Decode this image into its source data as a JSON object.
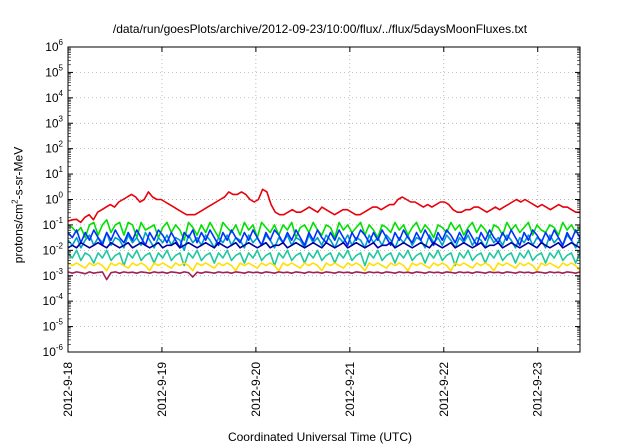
{
  "chart_data": {
    "type": "line",
    "title": "/data/run/goesPlots/archive/2012-09-23/10:00/flux/../flux/5daysMoonFluxes.txt",
    "xlabel": "Coordinated Universal Time (UTC)",
    "ylabel": {
      "prefix": "protons/cm",
      "sup": "2",
      "suffix": "-s-sr-MeV"
    },
    "yscale": "log",
    "ylim_exponents": [
      -6,
      6
    ],
    "ytick_labels": [
      {
        "base": "10",
        "exp": "6"
      },
      {
        "base": "10",
        "exp": "5"
      },
      {
        "base": "10",
        "exp": "4"
      },
      {
        "base": "10",
        "exp": "3"
      },
      {
        "base": "10",
        "exp": "2"
      },
      {
        "base": "10",
        "exp": "1"
      },
      {
        "base": "10",
        "exp": "0"
      },
      {
        "base": "10",
        "exp": "-1"
      },
      {
        "base": "10",
        "exp": "-2"
      },
      {
        "base": "10",
        "exp": "-3"
      },
      {
        "base": "10",
        "exp": "-4"
      },
      {
        "base": "10",
        "exp": "-5"
      },
      {
        "base": "10",
        "exp": "-6"
      }
    ],
    "xlim_days": [
      0,
      5.45
    ],
    "xtick_labels": [
      "2012-9-18",
      "2012-9-19",
      "2012-9-20",
      "2012-9-21",
      "2012-9-22",
      "2012-9-23"
    ],
    "grid": true,
    "series": [
      {
        "color": "#e8000b",
        "values": [
          -0.85,
          -0.8,
          -0.78,
          -0.9,
          -0.7,
          -0.6,
          -0.8,
          -0.5,
          -0.4,
          -0.3,
          -0.2,
          -0.3,
          -0.1,
          0.0,
          0.1,
          0.2,
          0.1,
          -0.1,
          0.0,
          0.3,
          0.1,
          0.0,
          0.0,
          -0.1,
          -0.2,
          -0.3,
          -0.4,
          -0.5,
          -0.6,
          -0.6,
          -0.6,
          -0.5,
          -0.4,
          -0.3,
          -0.2,
          -0.1,
          0.0,
          0.1,
          0.3,
          0.2,
          0.2,
          0.3,
          0.2,
          0.0,
          -0.1,
          0.0,
          0.4,
          0.3,
          -0.2,
          -0.5,
          -0.6,
          -0.6,
          -0.5,
          -0.4,
          -0.5,
          -0.5,
          -0.4,
          -0.3,
          -0.4,
          -0.5,
          -0.3,
          -0.4,
          -0.5,
          -0.6,
          -0.5,
          -0.4,
          -0.4,
          -0.5,
          -0.6,
          -0.6,
          -0.5,
          -0.4,
          -0.3,
          -0.3,
          -0.4,
          -0.3,
          -0.2,
          -0.2,
          0.0,
          0.1,
          0.0,
          -0.1,
          -0.1,
          -0.2,
          -0.3,
          -0.2,
          -0.3,
          -0.2,
          -0.1,
          -0.1,
          -0.2,
          -0.4,
          -0.5,
          -0.5,
          -0.4,
          -0.4,
          -0.3,
          -0.3,
          -0.4,
          -0.5,
          -0.4,
          -0.3,
          -0.4,
          -0.3,
          -0.2,
          -0.1,
          0.0,
          -0.1,
          0.0,
          -0.1,
          -0.2,
          -0.3,
          -0.2,
          -0.3,
          -0.4,
          -0.3,
          -0.2,
          -0.3,
          -0.3,
          -0.4,
          -0.5,
          -0.5
        ]
      },
      {
        "color": "#00e000",
        "values": [
          -1.0,
          -1.1,
          -1.3,
          -1.1,
          -1.5,
          -1.0,
          -0.9,
          -1.4,
          -1.0,
          -0.8,
          -1.3,
          -1.0,
          -0.9,
          -1.4,
          -0.9,
          -1.0,
          -1.5,
          -0.9,
          -1.2,
          -1.1,
          -1.0,
          -1.5,
          -1.1,
          -0.9,
          -1.3,
          -1.0,
          -1.2,
          -1.6,
          -0.9,
          -1.1,
          -1.4,
          -1.0,
          -1.3,
          -0.9,
          -1.2,
          -1.5,
          -0.9,
          -1.1,
          -1.3,
          -1.0,
          -1.4,
          -0.9,
          -1.2,
          -1.0,
          -1.5,
          -0.9,
          -1.1,
          -1.3,
          -1.0,
          -1.4,
          -1.0,
          -1.2,
          -0.9,
          -1.5,
          -1.1,
          -1.0,
          -1.3,
          -0.9,
          -1.2,
          -1.4,
          -1.0,
          -1.1,
          -1.5,
          -0.9,
          -1.2,
          -1.0,
          -1.3,
          -1.1,
          -0.9,
          -1.4,
          -1.0,
          -1.2,
          -1.5,
          -1.0,
          -1.1,
          -1.3,
          -0.9,
          -1.2,
          -1.0,
          -1.4,
          -1.1,
          -0.9,
          -1.3,
          -1.0,
          -1.2,
          -1.5,
          -1.0,
          -1.1,
          -1.3,
          -0.9,
          -1.2,
          -1.0,
          -1.4,
          -1.1,
          -0.9,
          -1.3,
          -1.0,
          -1.2,
          -1.5,
          -1.0,
          -1.1,
          -1.4,
          -0.9,
          -1.2,
          -1.0,
          -1.3,
          -1.1,
          -0.9,
          -1.4,
          -1.0,
          -1.2,
          -1.3,
          -1.0,
          -1.1,
          -1.4,
          -0.9,
          -1.2,
          -1.0,
          -1.3,
          -1.1
        ]
      },
      {
        "color": "#00a0c8",
        "values": [
          -1.6,
          -1.8,
          -1.5,
          -1.9,
          -1.6,
          -1.4,
          -1.8,
          -1.5,
          -1.7,
          -1.3,
          -1.8,
          -1.5,
          -1.6,
          -1.9,
          -1.4,
          -1.7,
          -1.5,
          -1.8,
          -1.3,
          -1.6,
          -1.9,
          -1.5,
          -1.7,
          -1.4,
          -1.8,
          -1.5,
          -1.6,
          -2.0,
          -1.4,
          -1.7,
          -1.5,
          -1.8,
          -1.4,
          -1.6,
          -1.9,
          -1.5,
          -1.7,
          -1.4,
          -1.8,
          -1.5,
          -1.6,
          -1.9,
          -1.4,
          -1.7,
          -1.5,
          -1.8,
          -1.4,
          -1.6,
          -1.9,
          -1.5,
          -1.7,
          -1.4,
          -1.8,
          -1.5,
          -1.6,
          -1.9,
          -1.4,
          -1.7,
          -1.5,
          -1.8,
          -1.4,
          -1.6,
          -1.9,
          -1.5,
          -1.7,
          -1.4,
          -1.8,
          -1.5,
          -1.6,
          -1.9,
          -1.4,
          -1.7,
          -1.5,
          -1.8,
          -1.4,
          -1.6,
          -1.9,
          -1.5,
          -1.7,
          -1.4,
          -1.8,
          -1.5,
          -1.6,
          -1.9,
          -1.4,
          -1.7,
          -1.5,
          -1.8,
          -1.4,
          -1.6,
          -1.9,
          -1.5,
          -1.7,
          -1.4,
          -1.8,
          -1.5,
          -1.6,
          -1.9,
          -1.4,
          -1.7,
          -1.5,
          -1.8,
          -1.4,
          -1.6,
          -1.9,
          -1.5,
          -1.7,
          -1.4,
          -1.8,
          -1.5,
          -1.6,
          -1.9,
          -1.4,
          -1.7,
          -1.5,
          -1.8,
          -1.4,
          -1.6,
          -1.9,
          -1.5
        ]
      },
      {
        "color": "#0030ff",
        "values": [
          -1.3,
          -1.5,
          -1.2,
          -1.7,
          -1.3,
          -1.6,
          -1.2,
          -1.5,
          -1.8,
          -1.3,
          -1.6,
          -1.2,
          -1.5,
          -1.7,
          -1.3,
          -1.6,
          -1.2,
          -1.5,
          -1.8,
          -1.3,
          -1.6,
          -1.2,
          -1.4,
          -1.7,
          -1.3,
          -1.6,
          -1.9,
          -1.3,
          -1.5,
          -1.2,
          -1.7,
          -1.3,
          -1.6,
          -1.2,
          -1.5,
          -1.8,
          -1.3,
          -1.6,
          -1.2,
          -1.5,
          -1.7,
          -1.3,
          -1.6,
          -1.2,
          -1.5,
          -1.8,
          -1.3,
          -1.6,
          -1.2,
          -1.4,
          -1.7,
          -1.3,
          -1.6,
          -1.2,
          -1.5,
          -1.8,
          -1.3,
          -1.6,
          -1.2,
          -1.5,
          -1.7,
          -1.3,
          -1.6,
          -1.2,
          -1.5,
          -1.8,
          -1.3,
          -1.6,
          -1.2,
          -1.4,
          -1.7,
          -1.3,
          -1.6,
          -1.2,
          -1.5,
          -1.8,
          -1.3,
          -1.6,
          -1.2,
          -1.5,
          -1.7,
          -1.3,
          -1.6,
          -1.2,
          -1.5,
          -1.8,
          -1.3,
          -1.6,
          -1.2,
          -1.4,
          -1.7,
          -1.3,
          -1.6,
          -1.2,
          -1.5,
          -1.8,
          -1.3,
          -1.6,
          -1.2,
          -1.5,
          -1.7,
          -1.3,
          -1.6,
          -1.2,
          -1.5,
          -1.8,
          -1.3,
          -1.6,
          -1.2,
          -1.4,
          -1.7,
          -1.3,
          -1.6,
          -1.2,
          -1.5,
          -1.8,
          -1.3,
          -1.6,
          -1.2,
          -1.5
        ]
      },
      {
        "color": "#0000a0",
        "values": [
          -1.9,
          -1.8,
          -1.9,
          -1.7,
          -1.8,
          -1.9,
          -1.8,
          -1.7,
          -1.8,
          -1.9,
          -1.7,
          -1.8,
          -1.9,
          -1.8,
          -1.7,
          -1.9,
          -1.8,
          -1.7,
          -1.8,
          -1.9,
          -1.8,
          -1.7,
          -1.9,
          -1.8,
          -1.8,
          -1.7,
          -1.9,
          -1.8,
          -1.7,
          -1.8,
          -1.9,
          -1.8,
          -1.7,
          -1.8,
          -1.9,
          -1.7,
          -1.8,
          -1.9,
          -1.8,
          -1.7,
          -1.9,
          -1.8,
          -1.7,
          -1.8,
          -1.9,
          -1.8,
          -1.7,
          -1.9,
          -1.8,
          -1.8,
          -1.7,
          -1.9,
          -1.8,
          -1.7,
          -1.8,
          -1.9,
          -1.8,
          -1.7,
          -1.8,
          -1.9,
          -1.7,
          -1.8,
          -1.9,
          -1.8,
          -1.7,
          -1.9,
          -1.8,
          -1.7,
          -1.8,
          -1.9,
          -1.8,
          -1.7,
          -1.9,
          -1.8,
          -1.8,
          -1.7,
          -1.9,
          -1.8,
          -1.7,
          -1.8,
          -1.9,
          -1.8,
          -1.7,
          -1.8,
          -1.9,
          -1.7,
          -1.8,
          -1.9,
          -1.8,
          -1.7,
          -1.9,
          -1.8,
          -1.7,
          -1.8,
          -1.9,
          -1.8,
          -1.7,
          -1.9,
          -1.8,
          -1.8,
          -1.7,
          -1.9,
          -1.8,
          -1.7,
          -1.8,
          -1.9,
          -1.8,
          -1.7,
          -1.8,
          -1.9,
          -1.7,
          -1.8,
          -1.9,
          -1.8,
          -1.7,
          -1.9,
          -1.8,
          -1.7,
          -1.8,
          -1.9
        ]
      },
      {
        "color": "#20c8a0",
        "values": [
          -2.1,
          -2.3,
          -2.0,
          -2.4,
          -2.1,
          -2.2,
          -2.5,
          -2.1,
          -2.3,
          -2.0,
          -2.4,
          -2.2,
          -2.1,
          -2.6,
          -2.1,
          -2.3,
          -2.0,
          -2.4,
          -2.2,
          -2.1,
          -2.5,
          -2.1,
          -2.3,
          -2.0,
          -2.4,
          -2.2,
          -2.1,
          -2.6,
          -2.1,
          -2.3,
          -2.0,
          -2.4,
          -2.2,
          -2.1,
          -2.5,
          -2.1,
          -2.3,
          -2.0,
          -2.4,
          -2.2,
          -2.1,
          -2.5,
          -2.1,
          -2.3,
          -2.0,
          -2.4,
          -2.2,
          -2.1,
          -2.6,
          -2.1,
          -2.3,
          -2.0,
          -2.4,
          -2.2,
          -2.1,
          -2.5,
          -2.1,
          -2.3,
          -2.0,
          -2.4,
          -2.2,
          -2.1,
          -2.5,
          -2.1,
          -2.3,
          -2.0,
          -2.4,
          -2.2,
          -2.1,
          -2.6,
          -2.1,
          -2.3,
          -2.0,
          -2.4,
          -2.2,
          -2.1,
          -2.5,
          -2.1,
          -2.3,
          -2.0,
          -2.4,
          -2.2,
          -2.1,
          -2.5,
          -2.1,
          -2.3,
          -2.0,
          -2.4,
          -2.2,
          -2.1,
          -2.6,
          -2.1,
          -2.3,
          -2.0,
          -2.4,
          -2.2,
          -2.1,
          -2.5,
          -2.1,
          -2.3,
          -2.0,
          -2.4,
          -2.2,
          -2.1,
          -2.5,
          -2.1,
          -2.3,
          -2.0,
          -2.4,
          -2.2,
          -2.1,
          -2.5,
          -2.1,
          -2.3,
          -2.0,
          -2.4,
          -2.2,
          -2.1,
          -2.5,
          -2.1
        ]
      },
      {
        "color": "#ffe000",
        "values": [
          -2.5,
          -2.6,
          -2.5,
          -2.6,
          -2.7,
          -2.5,
          -2.6,
          -2.5,
          -2.6,
          -2.8,
          -2.5,
          -2.6,
          -2.5,
          -2.6,
          -2.7,
          -2.5,
          -2.6,
          -2.5,
          -2.6,
          -2.8,
          -2.5,
          -2.6,
          -2.5,
          -2.6,
          -2.7,
          -2.5,
          -2.6,
          -2.5,
          -2.6,
          -2.8,
          -2.5,
          -2.6,
          -2.5,
          -2.6,
          -2.7,
          -2.5,
          -2.6,
          -2.5,
          -2.6,
          -2.8,
          -2.5,
          -2.6,
          -2.5,
          -2.6,
          -2.7,
          -2.5,
          -2.6,
          -2.5,
          -2.6,
          -2.8,
          -2.5,
          -2.6,
          -2.5,
          -2.6,
          -2.7,
          -2.5,
          -2.6,
          -2.5,
          -2.6,
          -2.8,
          -2.5,
          -2.6,
          -2.5,
          -2.6,
          -2.7,
          -2.5,
          -2.6,
          -2.5,
          -2.6,
          -2.8,
          -2.5,
          -2.6,
          -2.5,
          -2.6,
          -2.7,
          -2.5,
          -2.6,
          -2.5,
          -2.6,
          -2.8,
          -2.5,
          -2.6,
          -2.5,
          -2.6,
          -2.7,
          -2.5,
          -2.6,
          -2.5,
          -2.6,
          -2.8,
          -2.5,
          -2.6,
          -2.5,
          -2.6,
          -2.7,
          -2.5,
          -2.6,
          -2.5,
          -2.6,
          -2.8,
          -2.5,
          -2.6,
          -2.5,
          -2.6,
          -2.7,
          -2.5,
          -2.6,
          -2.5,
          -2.6,
          -2.8,
          -2.5,
          -2.6,
          -2.5,
          -2.6,
          -2.7,
          -2.5,
          -2.6,
          -2.5,
          -2.6,
          -2.8
        ]
      },
      {
        "color": "#a0205a",
        "values": [
          -2.85,
          -2.9,
          -2.85,
          -2.88,
          -2.92,
          -2.85,
          -2.9,
          -2.87,
          -2.85,
          -3.15,
          -2.88,
          -2.85,
          -2.9,
          -2.85,
          -2.88,
          -2.86,
          -2.9,
          -2.85,
          -2.87,
          -2.9,
          -2.85,
          -2.88,
          -2.86,
          -2.9,
          -2.85,
          -2.87,
          -2.9,
          -2.85,
          -2.88,
          -3.05,
          -2.86,
          -2.9,
          -2.85,
          -2.87,
          -2.9,
          -2.85,
          -2.88,
          -2.86,
          -2.9,
          -2.85,
          -2.87,
          -2.9,
          -2.85,
          -2.88,
          -2.86,
          -2.9,
          -2.85,
          -2.87,
          -2.9,
          -2.85,
          -2.88,
          -2.86,
          -2.9,
          -2.85,
          -2.87,
          -2.9,
          -2.85,
          -2.88,
          -2.86,
          -2.9,
          -2.85,
          -2.87,
          -2.9,
          -2.85,
          -2.88,
          -2.86,
          -2.9,
          -2.85,
          -2.87,
          -2.9,
          -2.85,
          -2.88,
          -2.86,
          -2.9,
          -2.85,
          -2.87,
          -2.9,
          -2.85,
          -2.88,
          -2.86,
          -2.9,
          -2.85,
          -2.87,
          -2.9,
          -2.85,
          -2.88,
          -2.86,
          -2.9,
          -2.85,
          -2.87,
          -2.9,
          -2.85,
          -2.88,
          -2.86,
          -2.9,
          -2.85,
          -2.87,
          -2.9,
          -2.85,
          -2.88,
          -2.86,
          -2.9,
          -2.85,
          -2.87,
          -2.9,
          -2.85,
          -2.88,
          -2.86,
          -2.9,
          -2.85,
          -2.87,
          -2.9,
          -2.85,
          -2.88,
          -2.86,
          -2.9,
          -2.85,
          -2.87,
          -2.9,
          -2.85
        ]
      }
    ]
  }
}
